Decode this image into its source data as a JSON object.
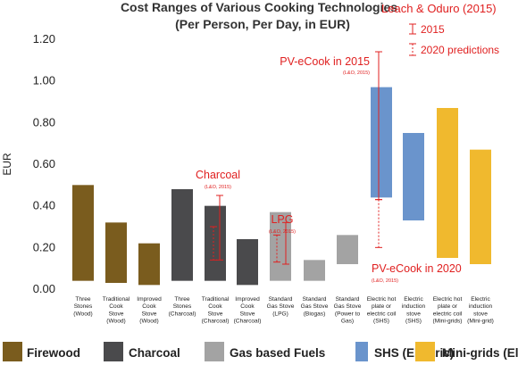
{
  "chart_data": {
    "type": "bar",
    "subtype": "floating-range",
    "title": "Cost Ranges of Various Cooking Technologies",
    "subtitle": "(Per Person, Per Day, in EUR)",
    "ylabel": "EUR",
    "xlabel": "",
    "ylim": [
      0,
      1.2
    ],
    "yticks": [
      "0.00",
      "0.20",
      "0.40",
      "0.60",
      "0.80",
      "1.00",
      "1.20"
    ],
    "grid": false,
    "legend_position": "bottom",
    "colors": {
      "Firewood": "#7a5c1e",
      "Charcoal": "#4a4a4c",
      "Gas based Fuels": "#a3a3a3",
      "SHS (Electric)": "#6a94cc",
      "Mini-grids (Electric)": "#f0b92e",
      "annotation": "#e02020"
    },
    "bars": [
      {
        "label": [
          "Three",
          "Stones",
          "(Wood)"
        ],
        "group": "Firewood",
        "low": 0.04,
        "high": 0.5
      },
      {
        "label": [
          "Traditional",
          "Cook",
          "Stove",
          "(Wood)"
        ],
        "group": "Firewood",
        "low": 0.03,
        "high": 0.32
      },
      {
        "label": [
          "Improved",
          "Cook",
          "Stove",
          "(Wood)"
        ],
        "group": "Firewood",
        "low": 0.02,
        "high": 0.22
      },
      {
        "label": [
          "Three",
          "Stones",
          "(Charcoal)"
        ],
        "group": "Charcoal",
        "low": 0.04,
        "high": 0.48
      },
      {
        "label": [
          "Traditional",
          "Cook",
          "Stove",
          "(Charcoal)"
        ],
        "group": "Charcoal",
        "low": 0.04,
        "high": 0.4
      },
      {
        "label": [
          "Improved",
          "Cook",
          "Stove",
          "(Charcoal)"
        ],
        "group": "Charcoal",
        "low": 0.02,
        "high": 0.24
      },
      {
        "label": [
          "Standard",
          "Gas Stove",
          "(LPG)"
        ],
        "group": "Gas based Fuels",
        "low": 0.04,
        "high": 0.37
      },
      {
        "label": [
          "Standard",
          "Gas Stove",
          "(Biogas)"
        ],
        "group": "Gas based Fuels",
        "low": 0.04,
        "high": 0.14
      },
      {
        "label": [
          "Standard",
          "Gas Stove",
          "(Power to",
          "Gas)"
        ],
        "group": "Gas based Fuels",
        "low": 0.12,
        "high": 0.26
      },
      {
        "label": [
          "Electric hot",
          "plate or",
          "electric coil",
          "(SHS)"
        ],
        "group": "SHS (Electric)",
        "low": 0.44,
        "high": 0.97
      },
      {
        "label": [
          "Electric",
          "induction",
          "stove",
          "(SHS)"
        ],
        "group": "SHS (Electric)",
        "low": 0.33,
        "high": 0.75
      },
      {
        "label": [
          "Electric hot",
          "plate or",
          "electric coil",
          "(Mini-grids)"
        ],
        "group": "Mini-grids (Electric)",
        "low": 0.15,
        "high": 0.87
      },
      {
        "label": [
          "Electric",
          "induction",
          "stove",
          "(Mini-grid)"
        ],
        "group": "Mini-grids (Electric)",
        "low": 0.12,
        "high": 0.67
      }
    ],
    "leach_oduro_2015": [
      {
        "category_index": 4,
        "low": 0.14,
        "high": 0.45,
        "label": "Charcoal",
        "source": "(L&O, 2015)"
      },
      {
        "category_index": 6,
        "low": 0.12,
        "high": 0.32,
        "label": "LPG",
        "source": "(L&O, 2015)"
      },
      {
        "category_index": 9,
        "low": 0.43,
        "high": 1.14,
        "label": "PV-eCook in 2015",
        "source": "(L&O, 2015)"
      }
    ],
    "leach_oduro_2020": [
      {
        "category_index": 6,
        "low": 0.13,
        "high": 0.26
      },
      {
        "category_index": 9,
        "low": 0.2,
        "high": 0.43,
        "label": "PV-eCook in 2020",
        "source": "(L&O, 2015)"
      }
    ],
    "annotation_legend": {
      "title": "Leach & Oduro (2015)",
      "solid_label": "2015",
      "dashed_label": "2020 predictions"
    },
    "legend": [
      "Firewood",
      "Charcoal",
      "Gas based Fuels",
      "SHS (Electric)",
      "Mini-grids (Electric)"
    ]
  }
}
